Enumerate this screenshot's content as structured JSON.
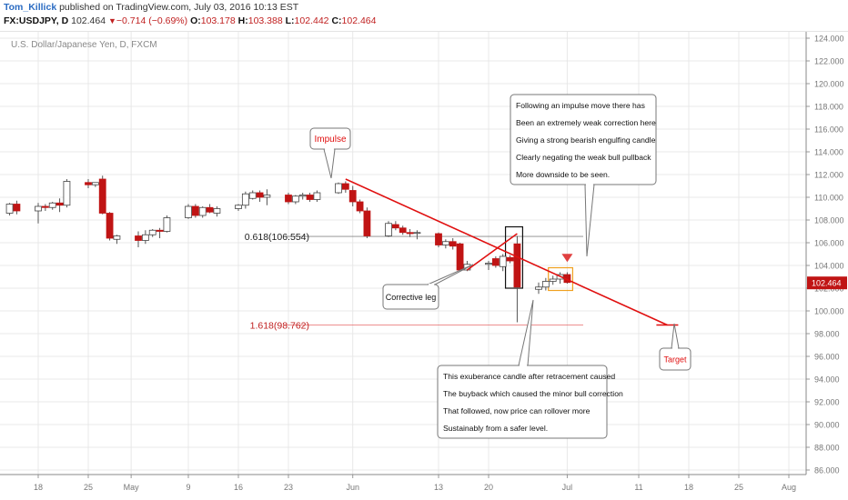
{
  "header": {
    "author": "Tom_Killick",
    "published": "published on TradingView.com, July 03, 2016 10:13 EST",
    "symbol": "FX:USDJPY, D",
    "last": "102.464",
    "change": "−0.714 (−0.69%)",
    "o_label": "O:",
    "o": "103.178",
    "h_label": "H:",
    "h": "103.388",
    "l_label": "L:",
    "l": "102.442",
    "c_label": "C:",
    "c": "102.464",
    "down_icon": "down-triangle-icon"
  },
  "pane_title": "U.S. Dollar/Japanese Yen, D, FXCM",
  "colors": {
    "up": "#ffffff",
    "down": "#c01414",
    "wick": "#555555",
    "trend": "#e01010",
    "fib": "#e86a6a",
    "grid": "#e8e8e8",
    "orange": "#f0a020"
  },
  "chart_data": {
    "type": "candlestick",
    "ylim": [
      85,
      125
    ],
    "yticks": [
      "86.000",
      "88.000",
      "90.000",
      "92.000",
      "94.000",
      "96.000",
      "98.000",
      "100.000",
      "102.000",
      "104.000",
      "106.000",
      "108.000",
      "110.000",
      "112.000",
      "114.000",
      "116.000",
      "118.000",
      "120.000",
      "122.000",
      "124.000"
    ],
    "xticks": [
      "18",
      "25",
      "May",
      "9",
      "16",
      "23",
      "Jun",
      "13",
      "20",
      "Jul",
      "11",
      "18",
      "25",
      "Aug"
    ],
    "last_price": "102.464",
    "candles": [
      {
        "date": "2016-04-14",
        "o": 108.6,
        "h": 109.5,
        "l": 108.4,
        "c": 109.4
      },
      {
        "date": "2016-04-15",
        "o": 109.4,
        "h": 109.7,
        "l": 108.5,
        "c": 108.8
      },
      {
        "date": "2016-04-18",
        "o": 108.8,
        "h": 109.5,
        "l": 107.7,
        "c": 109.2
      },
      {
        "date": "2016-04-19",
        "o": 109.2,
        "h": 109.4,
        "l": 108.8,
        "c": 109.1
      },
      {
        "date": "2016-04-20",
        "o": 109.1,
        "h": 109.6,
        "l": 108.9,
        "c": 109.5
      },
      {
        "date": "2016-04-21",
        "o": 109.5,
        "h": 109.9,
        "l": 108.7,
        "c": 109.3
      },
      {
        "date": "2016-04-22",
        "o": 109.3,
        "h": 111.6,
        "l": 109.1,
        "c": 111.4
      },
      {
        "date": "2016-04-25",
        "o": 111.3,
        "h": 111.6,
        "l": 110.8,
        "c": 111.1
      },
      {
        "date": "2016-04-26",
        "o": 111.1,
        "h": 111.3,
        "l": 110.9,
        "c": 111.3
      },
      {
        "date": "2016-04-27",
        "o": 111.6,
        "h": 111.9,
        "l": 108.5,
        "c": 108.6
      },
      {
        "date": "2016-04-28",
        "o": 108.6,
        "h": 108.7,
        "l": 106.2,
        "c": 106.4
      },
      {
        "date": "2016-04-29",
        "o": 106.3,
        "h": 106.7,
        "l": 105.9,
        "c": 106.6
      },
      {
        "date": "2016-05-02",
        "o": 106.6,
        "h": 107.0,
        "l": 105.6,
        "c": 106.2
      },
      {
        "date": "2016-05-03",
        "o": 106.2,
        "h": 107.1,
        "l": 105.9,
        "c": 106.7
      },
      {
        "date": "2016-05-04",
        "o": 106.7,
        "h": 107.2,
        "l": 106.5,
        "c": 107.1
      },
      {
        "date": "2016-05-05",
        "o": 107.1,
        "h": 107.3,
        "l": 106.4,
        "c": 107.0
      },
      {
        "date": "2016-05-06",
        "o": 107.0,
        "h": 108.4,
        "l": 106.9,
        "c": 108.2
      },
      {
        "date": "2016-05-09",
        "o": 108.2,
        "h": 109.4,
        "l": 108.1,
        "c": 109.2
      },
      {
        "date": "2016-05-10",
        "o": 109.2,
        "h": 109.4,
        "l": 108.2,
        "c": 108.4
      },
      {
        "date": "2016-05-11",
        "o": 108.4,
        "h": 109.2,
        "l": 108.2,
        "c": 109.1
      },
      {
        "date": "2016-05-12",
        "o": 109.1,
        "h": 109.4,
        "l": 108.6,
        "c": 108.7
      },
      {
        "date": "2016-05-13",
        "o": 108.6,
        "h": 109.2,
        "l": 108.3,
        "c": 109.0
      },
      {
        "date": "2016-05-16",
        "o": 109.0,
        "h": 109.4,
        "l": 108.8,
        "c": 109.3
      },
      {
        "date": "2016-05-17",
        "o": 109.3,
        "h": 110.5,
        "l": 109.0,
        "c": 110.3
      },
      {
        "date": "2016-05-18",
        "o": 109.9,
        "h": 110.6,
        "l": 109.8,
        "c": 110.4
      },
      {
        "date": "2016-05-19",
        "o": 110.4,
        "h": 110.6,
        "l": 109.6,
        "c": 110.0
      },
      {
        "date": "2016-05-20",
        "o": 110.0,
        "h": 110.7,
        "l": 109.3,
        "c": 110.2
      },
      {
        "date": "2016-05-23",
        "o": 110.2,
        "h": 110.4,
        "l": 109.4,
        "c": 109.6
      },
      {
        "date": "2016-05-24",
        "o": 109.6,
        "h": 110.2,
        "l": 109.4,
        "c": 110.1
      },
      {
        "date": "2016-05-25",
        "o": 110.1,
        "h": 110.4,
        "l": 109.8,
        "c": 110.2
      },
      {
        "date": "2016-05-26",
        "o": 110.2,
        "h": 110.4,
        "l": 109.6,
        "c": 109.8
      },
      {
        "date": "2016-05-27",
        "o": 109.8,
        "h": 110.6,
        "l": 109.6,
        "c": 110.4
      },
      {
        "date": "2016-05-30",
        "o": 110.4,
        "h": 111.3,
        "l": 110.3,
        "c": 111.2
      },
      {
        "date": "2016-05-31",
        "o": 111.2,
        "h": 111.4,
        "l": 110.4,
        "c": 110.7
      },
      {
        "date": "2016-06-01",
        "o": 110.6,
        "h": 111.0,
        "l": 109.2,
        "c": 109.6
      },
      {
        "date": "2016-06-02",
        "o": 109.6,
        "h": 109.8,
        "l": 108.6,
        "c": 108.8
      },
      {
        "date": "2016-06-03",
        "o": 108.8,
        "h": 109.1,
        "l": 106.4,
        "c": 106.6
      },
      {
        "date": "2016-06-06",
        "o": 106.6,
        "h": 107.9,
        "l": 106.5,
        "c": 107.7
      },
      {
        "date": "2016-06-07",
        "o": 107.6,
        "h": 107.9,
        "l": 107.1,
        "c": 107.3
      },
      {
        "date": "2016-06-08",
        "o": 107.3,
        "h": 107.5,
        "l": 106.7,
        "c": 106.9
      },
      {
        "date": "2016-06-09",
        "o": 106.9,
        "h": 107.2,
        "l": 106.5,
        "c": 106.8
      },
      {
        "date": "2016-06-10",
        "o": 106.9,
        "h": 107.1,
        "l": 106.3,
        "c": 106.9
      },
      {
        "date": "2016-06-13",
        "o": 106.8,
        "h": 106.9,
        "l": 105.6,
        "c": 105.8
      },
      {
        "date": "2016-06-14",
        "o": 105.8,
        "h": 106.3,
        "l": 105.5,
        "c": 106.1
      },
      {
        "date": "2016-06-15",
        "o": 106.1,
        "h": 106.4,
        "l": 105.4,
        "c": 105.7
      },
      {
        "date": "2016-06-16",
        "o": 105.9,
        "h": 106.0,
        "l": 103.5,
        "c": 103.6
      },
      {
        "date": "2016-06-17",
        "o": 103.6,
        "h": 104.4,
        "l": 103.5,
        "c": 104.1
      },
      {
        "date": "2016-06-20",
        "o": 104.1,
        "h": 104.4,
        "l": 103.6,
        "c": 104.2
      },
      {
        "date": "2016-06-21",
        "o": 104.6,
        "h": 104.8,
        "l": 103.8,
        "c": 104.0
      },
      {
        "date": "2016-06-22",
        "o": 103.9,
        "h": 105.0,
        "l": 103.5,
        "c": 104.8
      },
      {
        "date": "2016-06-23",
        "o": 104.7,
        "h": 104.9,
        "l": 104.2,
        "c": 104.4
      },
      {
        "date": "2016-06-24",
        "o": 105.9,
        "h": 106.6,
        "l": 99.0,
        "c": 102.1
      },
      {
        "date": "2016-06-27",
        "o": 101.9,
        "h": 102.5,
        "l": 101.5,
        "c": 102.1
      },
      {
        "date": "2016-06-28",
        "o": 102.1,
        "h": 102.9,
        "l": 101.8,
        "c": 102.6
      },
      {
        "date": "2016-06-29",
        "o": 102.6,
        "h": 103.1,
        "l": 102.3,
        "c": 102.8
      },
      {
        "date": "2016-06-30",
        "o": 102.8,
        "h": 103.4,
        "l": 102.4,
        "c": 103.2
      },
      {
        "date": "2016-07-01",
        "o": 103.2,
        "h": 103.4,
        "l": 102.4,
        "c": 102.5
      }
    ],
    "fib_levels": [
      {
        "label": "0.618(106.554)",
        "value": 106.554
      },
      {
        "label": "1.618(98.762)",
        "value": 98.762
      }
    ],
    "trendlines": [
      {
        "x1": "2016-05-31",
        "y1": 111.6,
        "x2": "2016-07-15",
        "y2": 98.76
      },
      {
        "x1": "2016-06-17",
        "y1": 103.6,
        "x2": "2016-06-24",
        "y2": 106.8
      }
    ],
    "target_marker": {
      "date": "2016-07-15",
      "value": 98.76
    },
    "arrow_down": {
      "date": "2016-07-01",
      "value": 104.3
    },
    "highlight_boxes": [
      {
        "kind": "black",
        "date_from": "2016-06-23",
        "date_to": "2016-06-24",
        "top": 107.4,
        "bottom": 102.0
      },
      {
        "kind": "orange",
        "date_from": "2016-06-29",
        "date_to": "2016-07-01",
        "top": 103.8,
        "bottom": 101.8
      }
    ],
    "annotations": [
      {
        "id": "impulse",
        "lines": [
          "Impulse"
        ],
        "color": "#e01010"
      },
      {
        "id": "corrective",
        "lines": [
          "Corrective leg"
        ],
        "color": "#111111"
      },
      {
        "id": "info",
        "lines": [
          "Following an impulse move there has",
          "Been an extremely weak correction here",
          "Giving a strong bearish engulfing candle",
          "Clearly negating the weak bull pullback",
          "More downside to be seen."
        ],
        "color": "#111111"
      },
      {
        "id": "exuberance",
        "lines": [
          "This exuberance candle after retracement caused",
          "The buyback which caused the minor bull correction",
          "That followed, now price can rollover more",
          "Sustainably from a safer level."
        ],
        "color": "#111111"
      },
      {
        "id": "target",
        "lines": [
          "Target"
        ],
        "color": "#e01010"
      }
    ]
  }
}
